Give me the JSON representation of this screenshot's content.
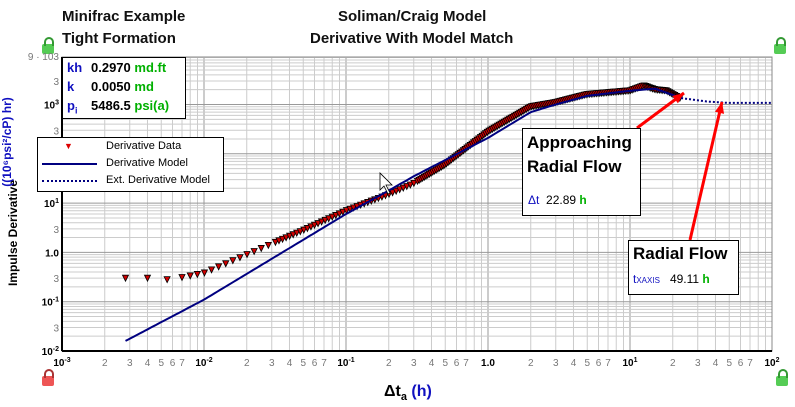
{
  "titles": {
    "left1": "Minifrac Example",
    "left2": "Tight Formation",
    "center1": "Soliman/Craig Model",
    "center2": "Derivative With Model Match"
  },
  "info": [
    {
      "sym": "kh",
      "value": "0.2970",
      "unit": "md.ft"
    },
    {
      "sym": "k",
      "value": "0.0050",
      "unit": "md"
    },
    {
      "sym": "p",
      "sub": "i",
      "value": "5486.5",
      "unit": "psi(a)"
    }
  ],
  "legend": [
    "Derivative Data",
    "Derivative Model",
    "Ext. Derivative Model"
  ],
  "annotations": [
    {
      "title1": "Approaching",
      "title2": "Radial Flow",
      "sym": "Δt",
      "value": "22.89",
      "unit": "h"
    },
    {
      "title1": "Radial Flow",
      "sym": "t",
      "sub": "XAXIS",
      "value": "49.11",
      "unit": "h"
    }
  ],
  "colors": {
    "model": "#000080",
    "data": "#d00000",
    "arrow": "#ff0000",
    "unit": "#00b000",
    "sym": "#1010c0"
  },
  "chart_data": {
    "type": "scatter",
    "xlabel": {
      "main": "Δt",
      "sub": "a",
      "unit": "(h)"
    },
    "ylabel": {
      "main": "Impulse Derivative",
      "unit": "((10⁶psi²/cP) hr)"
    },
    "xlim": [
      0.001,
      100
    ],
    "ylim": [
      0.01,
      9000
    ],
    "x_ticks": [
      "10-3",
      "2",
      "3",
      "4",
      "5",
      "6",
      "7",
      "10-2",
      "2",
      "3",
      "4",
      "5",
      "6",
      "7",
      "10-1",
      "2",
      "3",
      "4",
      "5",
      "6",
      "7",
      "1.0",
      "2",
      "3",
      "4",
      "5",
      "6",
      "7",
      "101",
      "2",
      "3",
      "4",
      "5",
      "6",
      "7",
      "102"
    ],
    "y_ticks": [
      "9 · 103",
      "3",
      "103",
      "3",
      "102",
      "3",
      "101",
      "3",
      "1.0",
      "3",
      "10-1",
      "3",
      "10-2"
    ],
    "series": [
      {
        "name": "Derivative Data",
        "x": [
          0.0028,
          0.004,
          0.0055,
          0.007,
          0.01,
          0.02,
          0.05,
          0.1,
          0.2,
          0.3,
          0.5,
          1,
          2,
          3,
          5,
          8,
          10,
          12.5,
          15,
          18,
          22.89
        ],
        "y": [
          0.3,
          0.3,
          0.28,
          0.31,
          0.38,
          0.9,
          2.8,
          7,
          15,
          25,
          60,
          280,
          900,
          1100,
          1600,
          1800,
          1900,
          2400,
          2000,
          1900,
          1300
        ]
      },
      {
        "name": "Derivative Model",
        "x": [
          0.0028,
          0.01,
          0.1,
          0.2,
          0.3,
          1,
          2,
          3,
          5,
          10,
          15,
          22.89
        ],
        "y": [
          0.016,
          0.11,
          6,
          18,
          35,
          210,
          700,
          1000,
          1500,
          1900,
          2100,
          1350
        ]
      },
      {
        "name": "Ext. Derivative Model",
        "x": [
          22.89,
          35,
          49.11,
          100
        ],
        "y": [
          1350,
          1150,
          1080,
          1080
        ]
      }
    ]
  }
}
